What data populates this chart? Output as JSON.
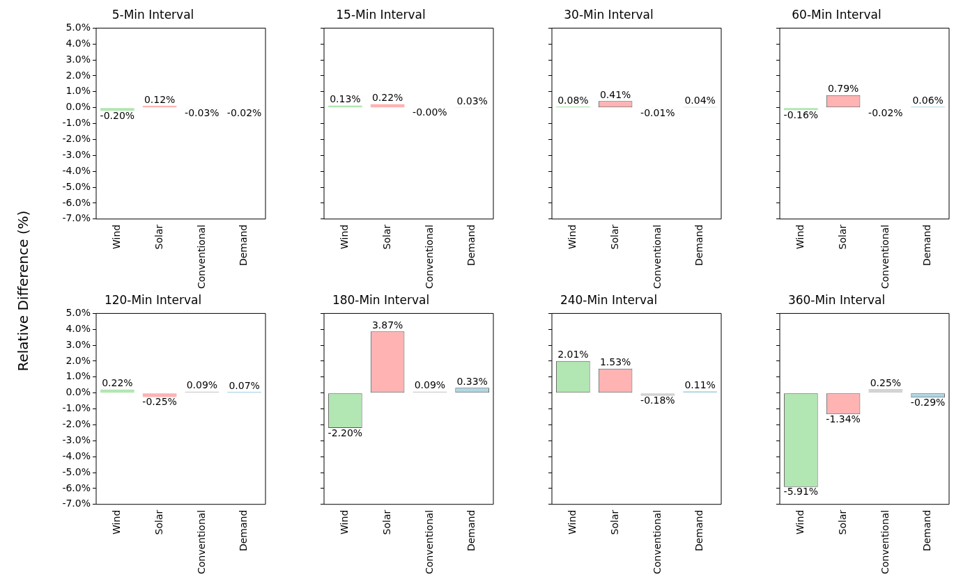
{
  "chart_data": [
    {
      "type": "bar",
      "title": "5-Min Interval",
      "ylabel": "Relative Difference (%)",
      "categories": [
        "Wind",
        "Solar",
        "Conventional",
        "Demand"
      ],
      "values": [
        -0.2,
        0.12,
        -0.03,
        -0.02
      ],
      "value_labels": [
        "-0.20%",
        "0.12%",
        "-0.03%",
        "-0.02%"
      ],
      "colors": [
        "#b2e6b2",
        "#ffb3b3",
        "#d3d3d3",
        "#add8e6"
      ],
      "ylim": [
        -7,
        5
      ],
      "yticks": [
        {
          "value": -7,
          "label": "-7.0%"
        },
        {
          "value": -6,
          "label": "-6.0%"
        },
        {
          "value": -5,
          "label": "-5.0%"
        },
        {
          "value": -4,
          "label": "-4.0%"
        },
        {
          "value": -3,
          "label": "-3.0%"
        },
        {
          "value": -2,
          "label": "-2.0%"
        },
        {
          "value": -1,
          "label": "-1.0%"
        },
        {
          "value": 0,
          "label": "0.0%"
        },
        {
          "value": 1,
          "label": "1.0%"
        },
        {
          "value": 2,
          "label": "2.0%"
        },
        {
          "value": 3,
          "label": "3.0%"
        },
        {
          "value": 4,
          "label": "4.0%"
        },
        {
          "value": 5,
          "label": "5.0%"
        }
      ]
    },
    {
      "type": "bar",
      "title": "15-Min Interval",
      "categories": [
        "Wind",
        "Solar",
        "Conventional",
        "Demand"
      ],
      "values": [
        0.13,
        0.22,
        0,
        0.03
      ],
      "value_labels": [
        "0.13%",
        "0.22%",
        "-0.00%",
        "0.03%"
      ],
      "colors": [
        "#b2e6b2",
        "#ffb3b3",
        "#d3d3d3",
        "#add8e6"
      ],
      "ylim": [
        -7,
        5
      ],
      "yticks": [
        {
          "value": -7,
          "label": null
        },
        {
          "value": -6,
          "label": null
        },
        {
          "value": -5,
          "label": null
        },
        {
          "value": -4,
          "label": null
        },
        {
          "value": -3,
          "label": null
        },
        {
          "value": -2,
          "label": null
        },
        {
          "value": -1,
          "label": null
        },
        {
          "value": 0,
          "label": null
        },
        {
          "value": 1,
          "label": null
        },
        {
          "value": 2,
          "label": null
        },
        {
          "value": 3,
          "label": null
        },
        {
          "value": 4,
          "label": null
        },
        {
          "value": 5,
          "label": null
        }
      ],
      "tick_labels": "x"
    },
    {
      "type": "bar",
      "title": "30-Min Interval",
      "categories": [
        "Wind",
        "Solar",
        "Conventional",
        "Demand"
      ],
      "values": [
        0.08,
        0.41,
        -0.01,
        0.04
      ],
      "value_labels": [
        "0.08%",
        "0.41%",
        "-0.01%",
        "0.04%"
      ],
      "colors": [
        "#b2e6b2",
        "#ffb3b3",
        "#d3d3d3",
        "#add8e6"
      ],
      "ylim": [
        -7,
        5
      ],
      "yticks": [
        {
          "value": -7,
          "label": null
        },
        {
          "value": -6,
          "label": null
        },
        {
          "value": -5,
          "label": null
        },
        {
          "value": -4,
          "label": null
        },
        {
          "value": -3,
          "label": null
        },
        {
          "value": -2,
          "label": null
        },
        {
          "value": -1,
          "label": null
        },
        {
          "value": 0,
          "label": null
        },
        {
          "value": 1,
          "label": null
        },
        {
          "value": 2,
          "label": null
        },
        {
          "value": 3,
          "label": null
        },
        {
          "value": 4,
          "label": null
        },
        {
          "value": 5,
          "label": null
        }
      ],
      "tick_labels": "x"
    },
    {
      "type": "bar",
      "title": "60-Min Interval",
      "categories": [
        "Wind",
        "Solar",
        "Conventional",
        "Demand"
      ],
      "values": [
        -0.16,
        0.79,
        -0.02,
        0.06
      ],
      "value_labels": [
        "-0.16%",
        "0.79%",
        "-0.02%",
        "0.06%"
      ],
      "colors": [
        "#b2e6b2",
        "#ffb3b3",
        "#d3d3d3",
        "#add8e6"
      ],
      "ylim": [
        -7,
        5
      ],
      "yticks": [
        {
          "value": -7,
          "label": null
        },
        {
          "value": -6,
          "label": null
        },
        {
          "value": -5,
          "label": null
        },
        {
          "value": -4,
          "label": null
        },
        {
          "value": -3,
          "label": null
        },
        {
          "value": -2,
          "label": null
        },
        {
          "value": -1,
          "label": null
        },
        {
          "value": 0,
          "label": null
        },
        {
          "value": 1,
          "label": null
        },
        {
          "value": 2,
          "label": null
        },
        {
          "value": 3,
          "label": null
        },
        {
          "value": 4,
          "label": null
        },
        {
          "value": 5,
          "label": null
        }
      ],
      "tick_labels": "x"
    },
    {
      "type": "bar",
      "title": "120-Min Interval",
      "categories": [
        "Wind",
        "Solar",
        "Conventional",
        "Demand"
      ],
      "values": [
        0.22,
        -0.25,
        0.09,
        0.07
      ],
      "value_labels": [
        "0.22%",
        "-0.25%",
        "0.09%",
        "0.07%"
      ],
      "colors": [
        "#b2e6b2",
        "#ffb3b3",
        "#d3d3d3",
        "#add8e6"
      ],
      "ylim": [
        -7,
        5
      ],
      "yticks": [
        {
          "value": -7,
          "label": "-7.0%"
        },
        {
          "value": -6,
          "label": "-6.0%"
        },
        {
          "value": -5,
          "label": "-5.0%"
        },
        {
          "value": -4,
          "label": "-4.0%"
        },
        {
          "value": -3,
          "label": "-3.0%"
        },
        {
          "value": -2,
          "label": "-2.0%"
        },
        {
          "value": -1,
          "label": "-1.0%"
        },
        {
          "value": 0,
          "label": "0.0%"
        },
        {
          "value": 1,
          "label": "1.0%"
        },
        {
          "value": 2,
          "label": "2.0%"
        },
        {
          "value": 3,
          "label": "3.0%"
        },
        {
          "value": 4,
          "label": "4.0%"
        },
        {
          "value": 5,
          "label": "5.0%"
        }
      ]
    },
    {
      "type": "bar",
      "title": "180-Min Interval",
      "categories": [
        "Wind",
        "Solar",
        "Conventional",
        "Demand"
      ],
      "values": [
        -2.2,
        3.87,
        0.09,
        0.33
      ],
      "value_labels": [
        "-2.20%",
        "3.87%",
        "0.09%",
        "0.33%"
      ],
      "colors": [
        "#b2e6b2",
        "#ffb3b3",
        "#d3d3d3",
        "#add8e6"
      ],
      "ylim": [
        -7,
        5
      ],
      "yticks": [
        {
          "value": -7,
          "label": null
        },
        {
          "value": -6,
          "label": null
        },
        {
          "value": -5,
          "label": null
        },
        {
          "value": -4,
          "label": null
        },
        {
          "value": -3,
          "label": null
        },
        {
          "value": -2,
          "label": null
        },
        {
          "value": -1,
          "label": null
        },
        {
          "value": 0,
          "label": null
        },
        {
          "value": 1,
          "label": null
        },
        {
          "value": 2,
          "label": null
        },
        {
          "value": 3,
          "label": null
        },
        {
          "value": 4,
          "label": null
        },
        {
          "value": 5,
          "label": null
        }
      ],
      "tick_labels": "x"
    },
    {
      "type": "bar",
      "title": "240-Min Interval",
      "categories": [
        "Wind",
        "Solar",
        "Conventional",
        "Demand"
      ],
      "values": [
        2.01,
        1.53,
        -0.18,
        0.11
      ],
      "value_labels": [
        "2.01%",
        "1.53%",
        "-0.18%",
        "0.11%"
      ],
      "colors": [
        "#b2e6b2",
        "#ffb3b3",
        "#d3d3d3",
        "#add8e6"
      ],
      "ylim": [
        -7,
        5
      ],
      "yticks": [
        {
          "value": -7,
          "label": null
        },
        {
          "value": -6,
          "label": null
        },
        {
          "value": -5,
          "label": null
        },
        {
          "value": -4,
          "label": null
        },
        {
          "value": -3,
          "label": null
        },
        {
          "value": -2,
          "label": null
        },
        {
          "value": -1,
          "label": null
        },
        {
          "value": 0,
          "label": null
        },
        {
          "value": 1,
          "label": null
        },
        {
          "value": 2,
          "label": null
        },
        {
          "value": 3,
          "label": null
        },
        {
          "value": 4,
          "label": null
        },
        {
          "value": 5,
          "label": null
        }
      ],
      "tick_labels": "x"
    },
    {
      "type": "bar",
      "title": "360-Min Interval",
      "categories": [
        "Wind",
        "Solar",
        "Conventional",
        "Demand"
      ],
      "values": [
        -5.91,
        -1.34,
        0.25,
        -0.29
      ],
      "value_labels": [
        "-5.91%",
        "-1.34%",
        "0.25%",
        "-0.29%"
      ],
      "colors": [
        "#b2e6b2",
        "#ffb3b3",
        "#d3d3d3",
        "#add8e6"
      ],
      "ylim": [
        -7,
        5
      ],
      "yticks": [
        {
          "value": -7,
          "label": null
        },
        {
          "value": -6,
          "label": null
        },
        {
          "value": -5,
          "label": null
        },
        {
          "value": -4,
          "label": null
        },
        {
          "value": -3,
          "label": null
        },
        {
          "value": -2,
          "label": null
        },
        {
          "value": -1,
          "label": null
        },
        {
          "value": 0,
          "label": null
        },
        {
          "value": 1,
          "label": null
        },
        {
          "value": 2,
          "label": null
        },
        {
          "value": 3,
          "label": null
        },
        {
          "value": 4,
          "label": null
        },
        {
          "value": 5,
          "label": null
        }
      ],
      "tick_labels": "x"
    }
  ]
}
